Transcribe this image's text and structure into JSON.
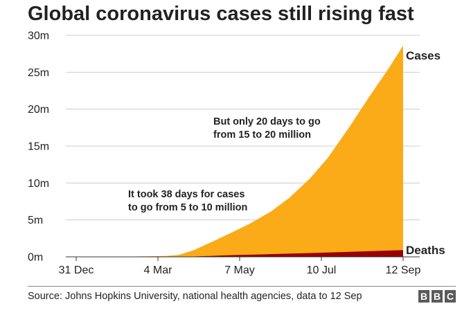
{
  "chart_data": {
    "type": "area",
    "title": "Global coronavirus cases still rising fast",
    "xlabel": "",
    "ylabel": "",
    "x_tick_labels": [
      "31 Dec",
      "4 Mar",
      "7 May",
      "10 Jul",
      "12 Sep"
    ],
    "x_tick_dates": [
      "2019-12-31",
      "2020-03-04",
      "2020-05-07",
      "2020-07-10",
      "2020-09-12"
    ],
    "y_tick_labels": [
      "0m",
      "5m",
      "10m",
      "15m",
      "20m",
      "25m",
      "30m"
    ],
    "y_tick_values": [
      0,
      5,
      10,
      15,
      20,
      25,
      30
    ],
    "ylim": [
      0,
      30
    ],
    "y_unit": "million",
    "grid": true,
    "series": [
      {
        "name": "Cases",
        "color": "#fbab18",
        "points": [
          [
            "2019-12-31",
            0
          ],
          [
            "2020-01-31",
            0.01
          ],
          [
            "2020-02-15",
            0.05
          ],
          [
            "2020-03-01",
            0.09
          ],
          [
            "2020-03-10",
            0.12
          ],
          [
            "2020-03-20",
            0.25
          ],
          [
            "2020-04-01",
            0.9
          ],
          [
            "2020-04-15",
            2.0
          ],
          [
            "2020-05-01",
            3.3
          ],
          [
            "2020-05-15",
            4.5
          ],
          [
            "2020-06-01",
            6.2
          ],
          [
            "2020-06-15",
            8.0
          ],
          [
            "2020-07-01",
            10.6
          ],
          [
            "2020-07-15",
            13.4
          ],
          [
            "2020-08-01",
            17.6
          ],
          [
            "2020-08-15",
            21.3
          ],
          [
            "2020-09-01",
            25.6
          ],
          [
            "2020-09-12",
            28.6
          ]
        ]
      },
      {
        "name": "Deaths",
        "color": "#990000",
        "points": [
          [
            "2019-12-31",
            0
          ],
          [
            "2020-02-15",
            0.002
          ],
          [
            "2020-03-15",
            0.006
          ],
          [
            "2020-04-01",
            0.05
          ],
          [
            "2020-04-15",
            0.13
          ],
          [
            "2020-05-01",
            0.23
          ],
          [
            "2020-06-01",
            0.37
          ],
          [
            "2020-07-01",
            0.51
          ],
          [
            "2020-08-01",
            0.68
          ],
          [
            "2020-09-01",
            0.85
          ],
          [
            "2020-09-12",
            0.91
          ]
        ]
      }
    ],
    "annotations": [
      {
        "lines": [
          "But only 20 days to go",
          "from 15 to 20 million"
        ]
      },
      {
        "lines": [
          "It took 38 days for cases",
          "to go from 5 to 10 million"
        ]
      }
    ],
    "source": "Source: Johns Hopkins University, national health agencies, data to 12 Sep",
    "logo_letters": [
      "B",
      "B",
      "C"
    ]
  }
}
